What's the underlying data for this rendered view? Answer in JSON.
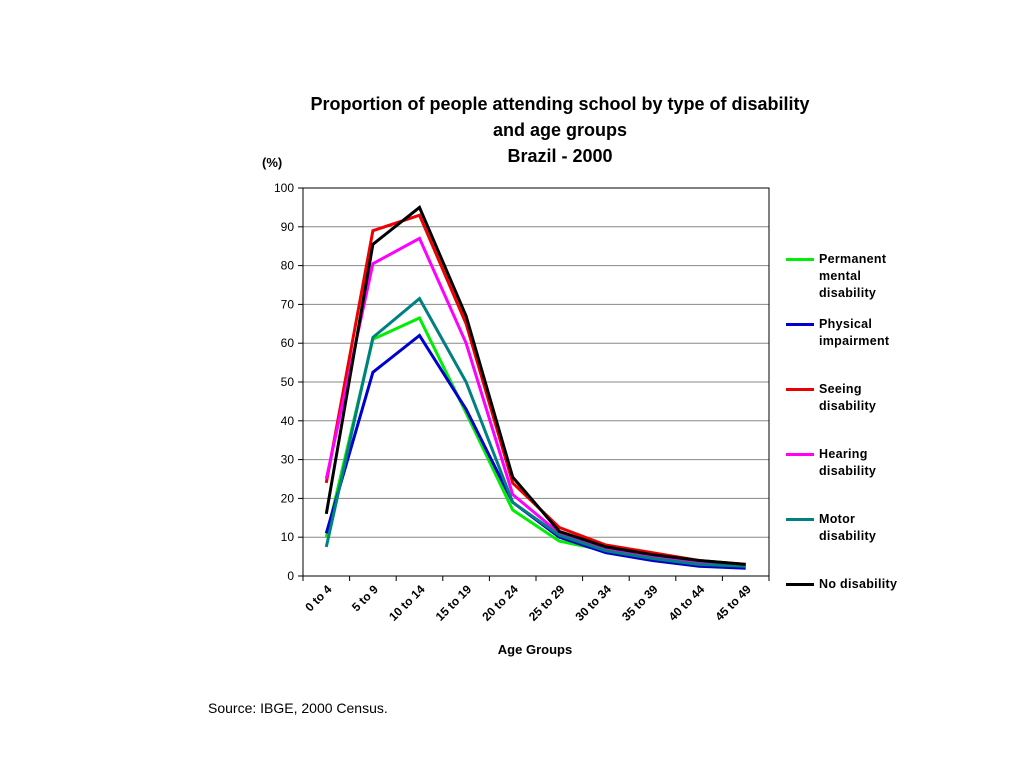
{
  "chart_data": {
    "type": "line",
    "title": [
      "Proportion of people attending school by type of disability",
      "and age groups",
      "Brazil - 2000"
    ],
    "ylabel": "(%)",
    "xlabel": "Age Groups",
    "ylim": [
      0,
      100
    ],
    "yticks": [
      0,
      10,
      20,
      30,
      40,
      50,
      60,
      70,
      80,
      90,
      100
    ],
    "grid": true,
    "legend_position": "right",
    "categories": [
      "0 to 4",
      "5 to 9",
      "10 to 14",
      "15 to 19",
      "20 to 24",
      "25 to 29",
      "30 to 34",
      "35 to 39",
      "40 to 44",
      "45 to 49"
    ],
    "series": [
      {
        "name": "Permanent mental disability",
        "color": "#00ee00",
        "values": [
          10,
          61,
          66.5,
          42,
          17,
          9,
          6.5,
          4.5,
          3,
          2.5
        ]
      },
      {
        "name": "Physical impairment",
        "color": "#0000cc",
        "values": [
          11,
          52.5,
          62,
          43,
          19,
          10,
          6,
          4,
          2.5,
          2
        ]
      },
      {
        "name": "Seeing disability",
        "color": "#ee0000",
        "values": [
          24,
          89,
          93,
          65,
          24,
          12.5,
          8,
          6,
          4,
          3
        ]
      },
      {
        "name": "Hearing disability",
        "color": "#ff00ff",
        "values": [
          25,
          80.5,
          87,
          60,
          21,
          11,
          7,
          5,
          3.5,
          2.5
        ]
      },
      {
        "name": "Motor disability",
        "color": "#008080",
        "values": [
          7.5,
          61.5,
          71.5,
          50,
          19,
          10.5,
          6.5,
          4.5,
          3,
          2.5
        ]
      },
      {
        "name": "No disability",
        "color": "#000000",
        "values": [
          16,
          85.5,
          95,
          67,
          25.5,
          11.5,
          7.5,
          5.5,
          4,
          3
        ]
      }
    ]
  },
  "source": "Source: IBGE, 2000 Census."
}
